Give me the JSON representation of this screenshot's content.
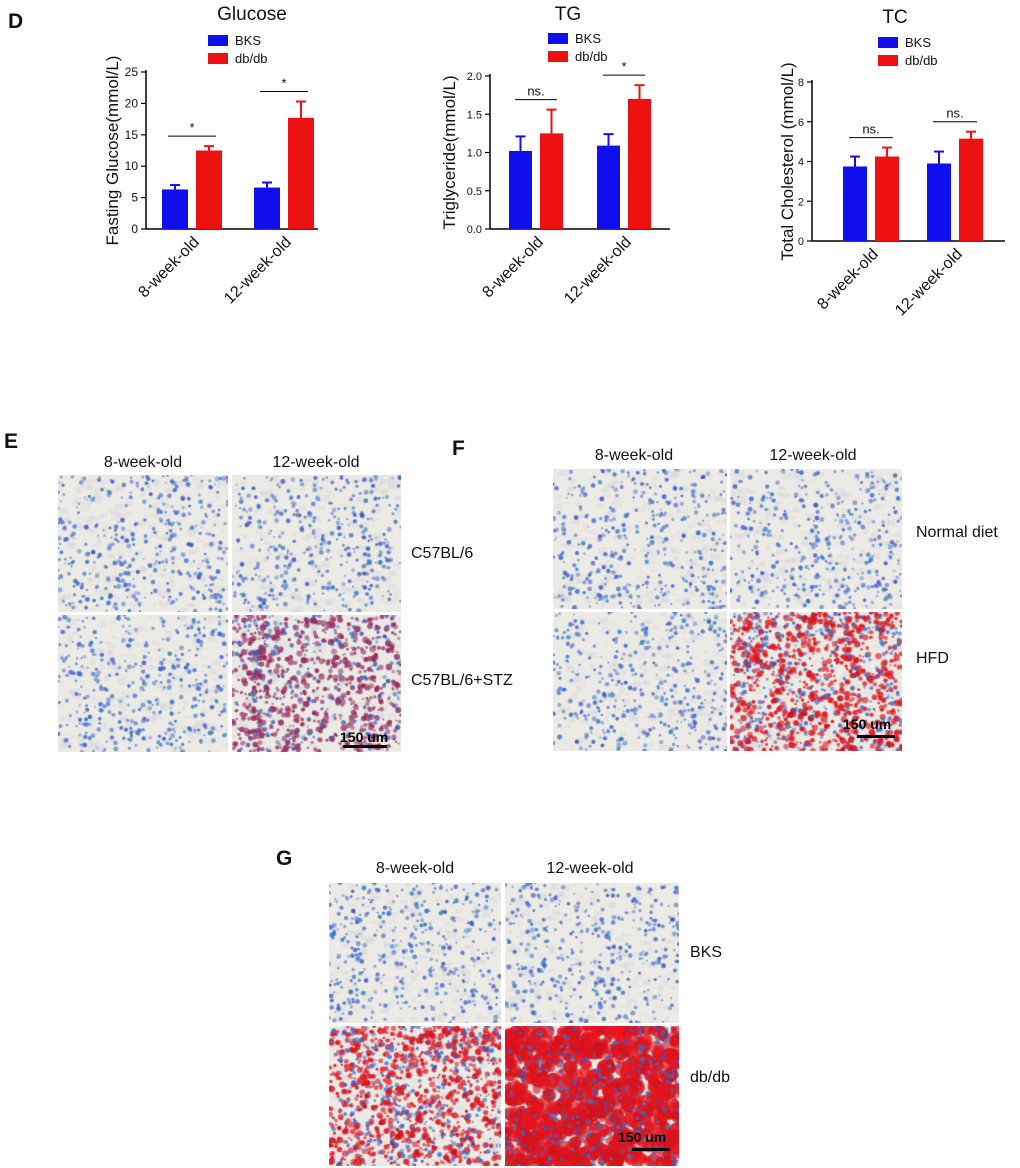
{
  "panels": {
    "d": "D",
    "e": "E",
    "f": "F",
    "g": "G"
  },
  "colors": {
    "bks": "#1010ee",
    "dbdb": "#ee1111"
  },
  "chart_data": [
    {
      "type": "bar",
      "title": "Glucose",
      "ylabel": "Fasting Glucose(mmol/L)",
      "xlabel": "",
      "categories": [
        "8-week-old",
        "12-week-old"
      ],
      "ylim": [
        0,
        25
      ],
      "yticks": [
        0,
        5,
        10,
        15,
        20,
        25
      ],
      "series": [
        {
          "name": "BKS",
          "values": [
            6.3,
            6.6
          ],
          "errors": [
            0.7,
            0.8
          ]
        },
        {
          "name": "db/db",
          "values": [
            12.5,
            17.7
          ],
          "errors": [
            0.7,
            2.6
          ]
        }
      ],
      "annotations": [
        "*",
        "*"
      ]
    },
    {
      "type": "bar",
      "title": "TG",
      "ylabel": "Triglyceride(mmol/L)",
      "xlabel": "",
      "categories": [
        "8-week-old",
        "12-week-old"
      ],
      "ylim": [
        0,
        2.0
      ],
      "yticks": [
        0.0,
        0.5,
        1.0,
        1.5,
        2.0
      ],
      "ytick_labels": [
        "0.0",
        "0.5",
        "1.0",
        "1.5",
        "2.0"
      ],
      "series": [
        {
          "name": "BKS",
          "values": [
            1.02,
            1.09
          ],
          "errors": [
            0.19,
            0.15
          ]
        },
        {
          "name": "db/db",
          "values": [
            1.25,
            1.7
          ],
          "errors": [
            0.31,
            0.18
          ]
        }
      ],
      "annotations": [
        "ns.",
        "*"
      ]
    },
    {
      "type": "bar",
      "title": "TC",
      "ylabel": "Total Cholesterol (mmol/L)",
      "xlabel": "",
      "categories": [
        "8-week-old",
        "12-week-old"
      ],
      "ylim": [
        0,
        8
      ],
      "yticks": [
        0,
        2,
        4,
        6,
        8
      ],
      "series": [
        {
          "name": "BKS",
          "values": [
            3.75,
            3.9
          ],
          "errors": [
            0.5,
            0.6
          ]
        },
        {
          "name": "db/db",
          "values": [
            4.25,
            5.15
          ],
          "errors": [
            0.45,
            0.35
          ]
        }
      ],
      "annotations": [
        "ns.",
        "ns."
      ]
    }
  ],
  "panel_e": {
    "columns": [
      "8-week-old",
      "12-week-old"
    ],
    "rows": [
      "C57BL/6",
      "C57BL/6+STZ"
    ],
    "scale": "150 um"
  },
  "panel_f": {
    "columns": [
      "8-week-old",
      "12-week-old"
    ],
    "rows": [
      "Normal diet",
      "HFD"
    ],
    "scale": "150 um"
  },
  "panel_g": {
    "columns": [
      "8-week-old",
      "12-week-old"
    ],
    "rows": [
      "BKS",
      "db/db"
    ],
    "scale": "150 um"
  }
}
